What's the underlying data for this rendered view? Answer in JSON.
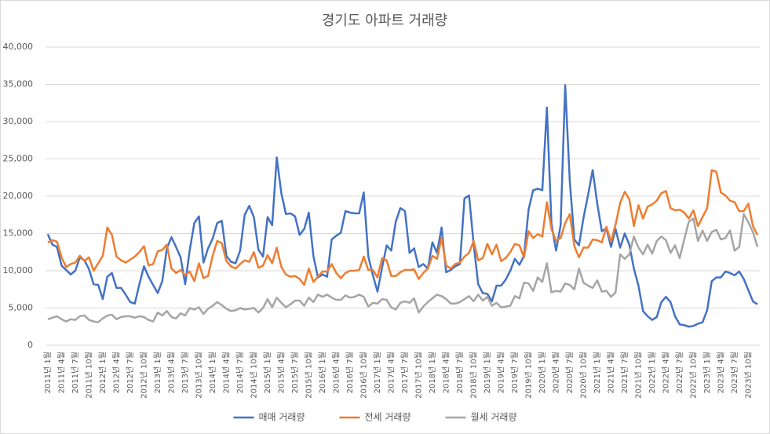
{
  "chart_data": {
    "type": "line",
    "title": "경기도 아파트 거래량",
    "categories": [
      "2011년 1월",
      null,
      null,
      "2011년 4월",
      null,
      null,
      "2011년 7월",
      null,
      null,
      "2011년 10월",
      null,
      null,
      "2012년 1월",
      null,
      null,
      "2012년 4월",
      null,
      null,
      "2012년 7월",
      null,
      null,
      "2012년 10월",
      null,
      null,
      "2013년 1월",
      null,
      null,
      "2013년 4월",
      null,
      null,
      "2013년 7월",
      null,
      null,
      "2013년 10월",
      null,
      null,
      "2014년 1월",
      null,
      null,
      "2014년 4월",
      null,
      null,
      "2014년 7월",
      null,
      null,
      "2014년 10월",
      null,
      null,
      "2015년 1월",
      null,
      null,
      "2015년 4월",
      null,
      null,
      "2015년 7월",
      null,
      null,
      "2015년 10월",
      null,
      null,
      "2016년 1월",
      null,
      null,
      "2016년 4월",
      null,
      null,
      "2016년 7월",
      null,
      null,
      "2016년 10월",
      null,
      null,
      "2017년 1월",
      null,
      null,
      "2017년 4월",
      null,
      null,
      "2017년 7월",
      null,
      null,
      "2017년 10월",
      null,
      null,
      "2018년 1월",
      null,
      null,
      "2018년 4월",
      null,
      null,
      "2018년 7월",
      null,
      null,
      "2018년 10월",
      null,
      null,
      "2019년 1월",
      null,
      null,
      "2019년 4월",
      null,
      null,
      "2019년 7월",
      null,
      null,
      "2019년 10월",
      null,
      null,
      "2020년 1월",
      null,
      null,
      "2020년 4월",
      null,
      null,
      "2020년 7월",
      null,
      null,
      "2020년 10월",
      null,
      null,
      "2021년 1월",
      null,
      null,
      "2021년 4월",
      null,
      null,
      "2021년 7월",
      null,
      null,
      "2021년 10월",
      null,
      null,
      "2022년 1월",
      null,
      null,
      "2022년 4월",
      null,
      null,
      "2022년 7월",
      null,
      null,
      "2022년 10월",
      null,
      null,
      "2023년 1월",
      null,
      null,
      "2023년 4월",
      null,
      null,
      "2023년 7월",
      null,
      null,
      "2023년 10월",
      null,
      null
    ],
    "series": [
      {
        "name": "매매 거래량",
        "color": "#4472c4",
        "values": [
          14900,
          13500,
          13200,
          10700,
          10100,
          9500,
          10000,
          11800,
          11400,
          10200,
          8200,
          8100,
          6200,
          9200,
          9700,
          7700,
          7700,
          6800,
          5800,
          5600,
          8200,
          10600,
          9200,
          8100,
          7000,
          8600,
          13000,
          14500,
          13200,
          11800,
          8200,
          12800,
          16400,
          17300,
          11100,
          13000,
          14300,
          16400,
          16700,
          12000,
          11200,
          11000,
          12700,
          17500,
          18700,
          17200,
          12800,
          11900,
          17200,
          16100,
          25200,
          20400,
          17600,
          17700,
          17300,
          14800,
          15600,
          17800,
          12000,
          9100,
          9500,
          9200,
          14200,
          14700,
          15100,
          18000,
          17800,
          17700,
          17700,
          20500,
          11900,
          9400,
          7200,
          10400,
          13400,
          12700,
          16600,
          18400,
          18000,
          12400,
          13000,
          10500,
          10900,
          10300,
          13800,
          12400,
          15800,
          9800,
          10100,
          10600,
          10900,
          19700,
          20100,
          13600,
          8200,
          7000,
          6900,
          5900,
          8000,
          8000,
          8800,
          10000,
          11600,
          10800,
          12000,
          18200,
          20800,
          21000,
          20800,
          31900,
          16300,
          12700,
          16100,
          34900,
          22000,
          14200,
          13400,
          17100,
          20200,
          23500,
          19000,
          15300,
          15700,
          13200,
          15600,
          13100,
          15000,
          13500,
          10300,
          8000,
          4600,
          3900,
          3400,
          3800,
          5800,
          6500,
          5800,
          3900,
          2800,
          2700,
          2500,
          2600,
          2900,
          3100,
          4700,
          8600,
          9100,
          9100,
          9900,
          9700,
          9400,
          9900,
          8900,
          7400,
          5900,
          5500
        ]
      },
      {
        "name": "전세 거래량",
        "color": "#ed7d31",
        "values": [
          13800,
          14100,
          13900,
          11800,
          10500,
          10900,
          11100,
          12000,
          11300,
          11800,
          10000,
          11000,
          12000,
          15800,
          14800,
          11900,
          11400,
          11100,
          11500,
          11900,
          12500,
          13300,
          10700,
          10900,
          12600,
          12800,
          13500,
          10300,
          9700,
          10100,
          9400,
          9900,
          8600,
          11000,
          9000,
          9300,
          12000,
          14000,
          13700,
          11300,
          10600,
          10300,
          10900,
          11400,
          11200,
          12500,
          10400,
          10700,
          12100,
          11000,
          13100,
          10500,
          9500,
          9200,
          9300,
          8900,
          8100,
          10300,
          8500,
          9200,
          9900,
          9900,
          10900,
          9700,
          9000,
          9700,
          10000,
          10000,
          10100,
          11900,
          10100,
          10100,
          9100,
          11700,
          11400,
          9300,
          9300,
          9800,
          10100,
          10100,
          10200,
          8900,
          9700,
          10300,
          12000,
          11600,
          14400,
          10700,
          10300,
          10900,
          11100,
          11900,
          12400,
          14000,
          11400,
          11700,
          13600,
          12200,
          13500,
          11300,
          11700,
          12500,
          13600,
          13400,
          11800,
          15300,
          14400,
          14900,
          14600,
          19200,
          15600,
          14000,
          14400,
          16400,
          17600,
          13300,
          11800,
          13100,
          13100,
          14200,
          14100,
          13800,
          15900,
          13900,
          16200,
          19100,
          20600,
          19600,
          16000,
          18800,
          17000,
          18600,
          18900,
          19400,
          20400,
          20700,
          18400,
          18100,
          18200,
          17800,
          17000,
          18100,
          16000,
          17200,
          18400,
          23500,
          23300,
          20500,
          20100,
          19400,
          19200,
          18000,
          18000,
          19000,
          16000,
          14800
        ]
      },
      {
        "name": "월세 거래량",
        "color": "#a5a5a5",
        "values": [
          3500,
          3700,
          3900,
          3500,
          3200,
          3500,
          3400,
          3900,
          4000,
          3400,
          3200,
          3100,
          3600,
          4000,
          4100,
          3500,
          3800,
          3900,
          3900,
          3700,
          3900,
          3800,
          3400,
          3200,
          4400,
          4000,
          4600,
          3800,
          3600,
          4300,
          4000,
          5000,
          4800,
          5100,
          4200,
          4900,
          5300,
          5800,
          5400,
          4900,
          4600,
          4700,
          5000,
          4800,
          4900,
          5000,
          4400,
          5000,
          6200,
          5100,
          6400,
          5700,
          5100,
          5500,
          6000,
          6000,
          5300,
          6400,
          5800,
          6800,
          6500,
          6800,
          6400,
          6100,
          6100,
          6700,
          6400,
          6500,
          6800,
          6500,
          5200,
          5700,
          5600,
          6200,
          6100,
          5100,
          4800,
          5700,
          5900,
          5700,
          6300,
          4400,
          5200,
          5800,
          6300,
          6800,
          6600,
          6200,
          5600,
          5600,
          5800,
          6200,
          6600,
          5900,
          6800,
          6000,
          6500,
          5300,
          5700,
          5100,
          5200,
          5300,
          6600,
          6300,
          8400,
          8300,
          7300,
          9100,
          8500,
          11000,
          7100,
          7300,
          7200,
          8300,
          8100,
          7500,
          10300,
          8400,
          8000,
          7700,
          8700,
          7200,
          7300,
          6500,
          7100,
          12200,
          11600,
          12200,
          14600,
          13100,
          12200,
          13500,
          12300,
          14000,
          14600,
          14100,
          12400,
          13400,
          11700,
          14200,
          16600,
          17000,
          14000,
          15400,
          14000,
          15200,
          15500,
          14200,
          14400,
          15400,
          12700,
          13200,
          17600,
          16500,
          15200,
          13200
        ]
      }
    ],
    "ylim": [
      0,
      40000
    ],
    "yticks": [
      0,
      {
        "value": 5000,
        "label": "5,000"
      },
      {
        "value": 10000,
        "label": "10,000"
      },
      {
        "value": 15000,
        "label": "15,000"
      },
      {
        "value": 20000,
        "label": "20,000"
      },
      {
        "value": 25000,
        "label": "25,000"
      },
      {
        "value": 30000,
        "label": "30,000"
      },
      {
        "value": 35000,
        "label": "35,000"
      },
      {
        "value": 40000,
        "label": "40,000"
      }
    ],
    "grid": true,
    "legend": "bottom"
  }
}
